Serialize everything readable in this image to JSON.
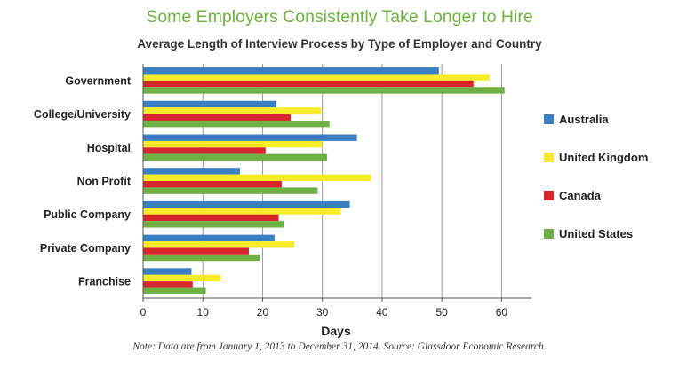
{
  "title": "Some Employers Consistently Take Longer to Hire",
  "subtitle": "Average Length of Interview Process by Type of Employer and Country",
  "note": "Note: Data are from January 1, 2013 to December 31, 2014. Source: Glassdoor Economic Research.",
  "chart_data": {
    "type": "bar",
    "orientation": "horizontal",
    "categories": [
      "Government",
      "College/University",
      "Hospital",
      "Non Profit",
      "Public Company",
      "Private Company",
      "Franchise"
    ],
    "series": [
      {
        "name": "Australia",
        "color": "#3a7fc1",
        "values": [
          49.5,
          22.3,
          35.8,
          16.2,
          34.6,
          22.0,
          8.1
        ]
      },
      {
        "name": "United Kingdom",
        "color": "#f7ec29",
        "values": [
          58.0,
          29.8,
          30.0,
          38.2,
          33.1,
          25.3,
          13.0
        ]
      },
      {
        "name": "Canada",
        "color": "#d7262d",
        "values": [
          55.3,
          24.7,
          20.5,
          23.2,
          22.7,
          17.7,
          8.3
        ]
      },
      {
        "name": "United States",
        "color": "#6eb043",
        "values": [
          60.5,
          31.2,
          30.8,
          29.2,
          23.6,
          19.5,
          10.5
        ]
      }
    ],
    "xlabel": "Days",
    "xlim": [
      0,
      65
    ],
    "xticks": [
      0,
      10,
      20,
      30,
      40,
      50,
      60
    ],
    "grid": true,
    "legend": "right"
  }
}
